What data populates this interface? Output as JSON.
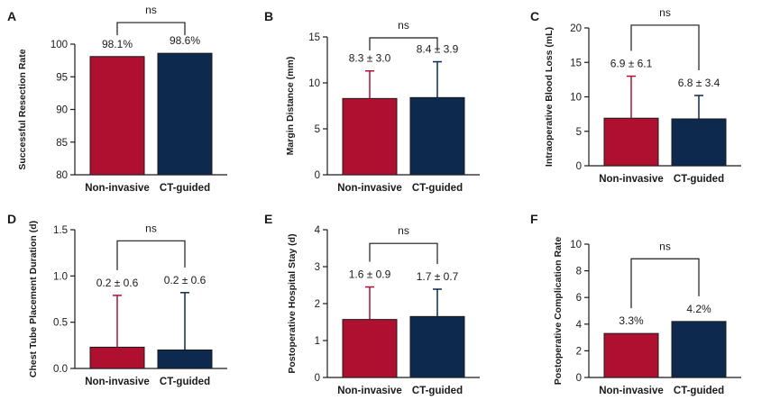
{
  "colors": {
    "non_invasive": "#b01030",
    "ct_guided": "#0d2a4e",
    "text": "#1a1a1a"
  },
  "chart_data": [
    {
      "panel": "A",
      "type": "bar",
      "ylabel": "Successful Resection Rate",
      "categories": [
        "Non-invasive",
        "CT-guided"
      ],
      "values": [
        98.1,
        98.6
      ],
      "errors_upper": [
        0,
        0
      ],
      "data_labels": [
        "98.1%",
        "98.6%"
      ],
      "ylim": [
        80,
        100
      ],
      "yticks": [
        80,
        85,
        90,
        95,
        100
      ],
      "ytick_labels": [
        "80",
        "85",
        "90",
        "95",
        "100"
      ],
      "significance": "ns",
      "bracket_y": 103.3
    },
    {
      "panel": "B",
      "type": "bar",
      "ylabel": "Margin Distance (mm)",
      "categories": [
        "Non-invasive",
        "CT-guided"
      ],
      "values": [
        8.3,
        8.4
      ],
      "errors_upper": [
        3.0,
        3.9
      ],
      "data_labels": [
        "8.3 ± 3.0",
        "8.4 ± 3.9"
      ],
      "ylim": [
        0,
        15
      ],
      "yticks": [
        0,
        5,
        10,
        15
      ],
      "ytick_labels": [
        "0",
        "5",
        "10",
        "15"
      ],
      "significance": "ns",
      "bracket_y": 14.9
    },
    {
      "panel": "C",
      "type": "bar",
      "ylabel": "Intraoperative Blood Loss (mL)",
      "categories": [
        "Non-invasive",
        "CT-guided"
      ],
      "values": [
        6.9,
        6.8
      ],
      "errors_upper": [
        6.1,
        3.4
      ],
      "data_labels": [
        "6.9 ± 6.1",
        "6.8 ± 3.4"
      ],
      "ylim": [
        0,
        20
      ],
      "yticks": [
        0,
        5,
        10,
        15,
        20
      ],
      "ytick_labels": [
        "0",
        "5",
        "10",
        "15",
        "20"
      ],
      "significance": "ns",
      "bracket_y": 20.4
    },
    {
      "panel": "D",
      "type": "bar",
      "ylabel": "Chest Tube Placement Duration (d)",
      "categories": [
        "Non-invasive",
        "CT-guided"
      ],
      "values": [
        0.23,
        0.2
      ],
      "errors_upper": [
        0.56,
        0.62
      ],
      "data_labels": [
        "0.2 ± 0.6",
        "0.2 ± 0.6"
      ],
      "ylim": [
        0,
        1.5
      ],
      "yticks": [
        0,
        0.5,
        1.0,
        1.5
      ],
      "ytick_labels": [
        "0.0",
        "0.5",
        "1.0",
        "1.5"
      ],
      "significance": "ns",
      "bracket_y": 1.38
    },
    {
      "panel": "E",
      "type": "bar",
      "ylabel": "Postoperative Hospital Stay (d)",
      "categories": [
        "Non-invasive",
        "CT-guided"
      ],
      "values": [
        1.57,
        1.65
      ],
      "errors_upper": [
        0.88,
        0.74
      ],
      "data_labels": [
        "1.6 ± 0.9",
        "1.7 ± 0.7"
      ],
      "ylim": [
        0,
        4
      ],
      "yticks": [
        0,
        1,
        2,
        3,
        4
      ],
      "ytick_labels": [
        "0",
        "1",
        "2",
        "3",
        "4"
      ],
      "significance": "ns",
      "bracket_y": 3.63
    },
    {
      "panel": "F",
      "type": "bar",
      "ylabel": "Postoperative Complication Rate",
      "categories": [
        "Non-invasive",
        "CT-guided"
      ],
      "values": [
        3.3,
        4.2
      ],
      "errors_upper": [
        0,
        0
      ],
      "data_labels": [
        "3.3%",
        "4.2%"
      ],
      "ylim": [
        0,
        10
      ],
      "yticks": [
        0,
        2,
        4,
        6,
        8,
        10
      ],
      "ytick_labels": [
        "0",
        "2",
        "4",
        "6",
        "8",
        "10"
      ],
      "significance": "ns",
      "bracket_y": 8.9
    }
  ]
}
